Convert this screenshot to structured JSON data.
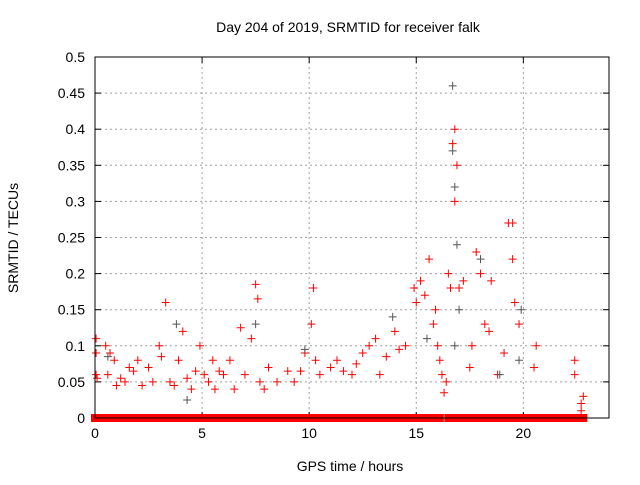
{
  "chart_data": {
    "type": "scatter",
    "title": "Day 204 of 2019, SRMTID for receiver falk",
    "xlabel": "GPS time / hours",
    "ylabel": "SRMTID / TECUs",
    "xlim": [
      0,
      24
    ],
    "ylim": [
      0,
      0.5
    ],
    "xticks": [
      "0",
      "5",
      "10",
      "15",
      "20"
    ],
    "xtick_values": [
      0,
      5,
      10,
      15,
      20
    ],
    "yticks": [
      "0",
      "0.05",
      "0.1",
      "0.15",
      "0.2",
      "0.25",
      "0.3",
      "0.35",
      "0.4",
      "0.45",
      "0.5"
    ],
    "ytick_values": [
      0,
      0.05,
      0.1,
      0.15,
      0.2,
      0.25,
      0.3,
      0.35,
      0.4,
      0.45,
      0.5
    ],
    "grid": true,
    "series": [
      {
        "name": "red",
        "color": "#ff0000",
        "marker": "plus",
        "points": [
          [
            0.05,
            0.11
          ],
          [
            0.05,
            0.09
          ],
          [
            0.05,
            0.06
          ],
          [
            0.1,
            0.055
          ],
          [
            0.5,
            0.1
          ],
          [
            0.6,
            0.06
          ],
          [
            0.7,
            0.09
          ],
          [
            0.9,
            0.08
          ],
          [
            1.0,
            0.045
          ],
          [
            1.2,
            0.055
          ],
          [
            1.4,
            0.05
          ],
          [
            1.6,
            0.07
          ],
          [
            1.8,
            0.065
          ],
          [
            2.0,
            0.08
          ],
          [
            2.2,
            0.045
          ],
          [
            2.5,
            0.07
          ],
          [
            2.7,
            0.05
          ],
          [
            3.0,
            0.1
          ],
          [
            3.1,
            0.085
          ],
          [
            3.3,
            0.16
          ],
          [
            3.5,
            0.05
          ],
          [
            3.7,
            0.045
          ],
          [
            3.9,
            0.08
          ],
          [
            4.1,
            0.12
          ],
          [
            4.3,
            0.055
          ],
          [
            4.5,
            0.04
          ],
          [
            4.7,
            0.065
          ],
          [
            4.9,
            0.1
          ],
          [
            5.1,
            0.06
          ],
          [
            5.3,
            0.05
          ],
          [
            5.5,
            0.08
          ],
          [
            5.6,
            0.04
          ],
          [
            5.8,
            0.065
          ],
          [
            6.0,
            0.06
          ],
          [
            6.3,
            0.08
          ],
          [
            6.5,
            0.04
          ],
          [
            6.8,
            0.125
          ],
          [
            7.0,
            0.06
          ],
          [
            7.3,
            0.11
          ],
          [
            7.5,
            0.185
          ],
          [
            7.6,
            0.165
          ],
          [
            7.7,
            0.05
          ],
          [
            7.9,
            0.04
          ],
          [
            8.1,
            0.07
          ],
          [
            8.5,
            0.05
          ],
          [
            9.0,
            0.065
          ],
          [
            9.3,
            0.05
          ],
          [
            9.6,
            0.065
          ],
          [
            9.8,
            0.09
          ],
          [
            10.1,
            0.13
          ],
          [
            10.2,
            0.18
          ],
          [
            10.3,
            0.08
          ],
          [
            10.5,
            0.06
          ],
          [
            11.0,
            0.07
          ],
          [
            11.3,
            0.08
          ],
          [
            11.6,
            0.065
          ],
          [
            12.0,
            0.06
          ],
          [
            12.2,
            0.075
          ],
          [
            12.5,
            0.09
          ],
          [
            12.8,
            0.1
          ],
          [
            13.1,
            0.11
          ],
          [
            13.3,
            0.06
          ],
          [
            13.6,
            0.085
          ],
          [
            14.0,
            0.12
          ],
          [
            14.2,
            0.095
          ],
          [
            14.5,
            0.1
          ],
          [
            14.9,
            0.18
          ],
          [
            15.0,
            0.16
          ],
          [
            15.2,
            0.19
          ],
          [
            15.4,
            0.17
          ],
          [
            15.6,
            0.22
          ],
          [
            15.8,
            0.13
          ],
          [
            15.9,
            0.15
          ],
          [
            16.0,
            0.1
          ],
          [
            16.1,
            0.08
          ],
          [
            16.2,
            0.06
          ],
          [
            16.3,
            0.035
          ],
          [
            16.4,
            0.05
          ],
          [
            16.5,
            0.2
          ],
          [
            16.6,
            0.18
          ],
          [
            16.7,
            0.38
          ],
          [
            16.8,
            0.4
          ],
          [
            16.9,
            0.35
          ],
          [
            16.8,
            0.3
          ],
          [
            17.0,
            0.18
          ],
          [
            17.2,
            0.19
          ],
          [
            17.5,
            0.07
          ],
          [
            17.6,
            0.1
          ],
          [
            17.8,
            0.23
          ],
          [
            18.0,
            0.2
          ],
          [
            18.2,
            0.13
          ],
          [
            18.4,
            0.12
          ],
          [
            18.5,
            0.19
          ],
          [
            18.8,
            0.06
          ],
          [
            19.1,
            0.09
          ],
          [
            19.3,
            0.27
          ],
          [
            19.5,
            0.27
          ],
          [
            19.5,
            0.22
          ],
          [
            19.6,
            0.16
          ],
          [
            19.8,
            0.13
          ],
          [
            20.5,
            0.07
          ],
          [
            20.6,
            0.1
          ],
          [
            22.4,
            0.08
          ],
          [
            22.4,
            0.06
          ],
          [
            22.7,
            0.02
          ],
          [
            22.7,
            0.01
          ],
          [
            22.8,
            0.03
          ]
        ],
        "zero_runs": [
          [
            0,
            5.3
          ],
          [
            5.4,
            8.0
          ],
          [
            8.1,
            10.9
          ],
          [
            11.0,
            16.1
          ],
          [
            16.5,
            22.8
          ]
        ]
      },
      {
        "name": "grey",
        "color": "#555555",
        "marker": "plus",
        "points": [
          [
            0.6,
            0.085
          ],
          [
            3.8,
            0.13
          ],
          [
            4.3,
            0.025
          ],
          [
            7.5,
            0.13
          ],
          [
            9.8,
            0.095
          ],
          [
            13.9,
            0.14
          ],
          [
            15.5,
            0.11
          ],
          [
            16.7,
            0.46
          ],
          [
            16.7,
            0.37
          ],
          [
            16.8,
            0.32
          ],
          [
            16.9,
            0.24
          ],
          [
            16.8,
            0.1
          ],
          [
            17.0,
            0.15
          ],
          [
            18.0,
            0.22
          ],
          [
            19.8,
            0.08
          ],
          [
            19.9,
            0.15
          ],
          [
            18.9,
            0.06
          ]
        ]
      }
    ]
  }
}
